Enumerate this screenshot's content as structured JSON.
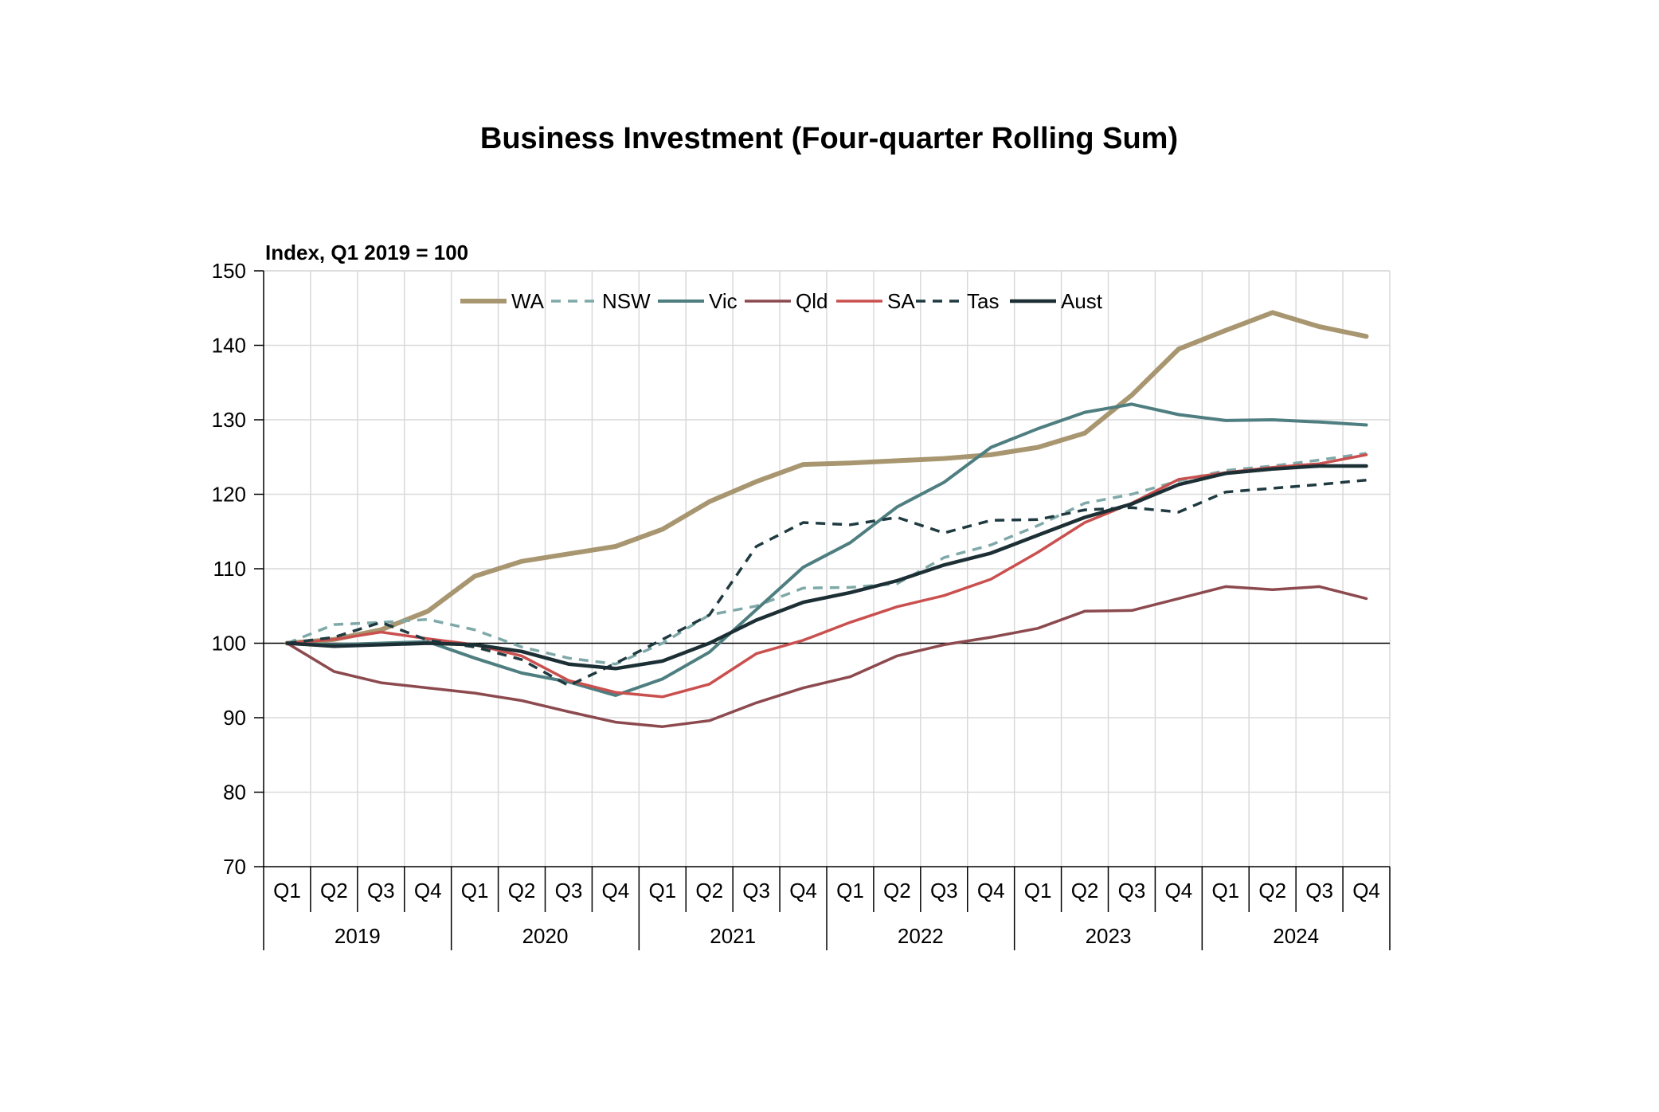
{
  "chart_data": {
    "type": "line",
    "title": "Business Investment (Four-quarter Rolling Sum)",
    "unit_label": "Index, Q1 2019 = 100",
    "ylim": [
      70,
      150
    ],
    "yticks": [
      "70",
      "80",
      "90",
      "100",
      "110",
      "120",
      "130",
      "140",
      "150"
    ],
    "grid": true,
    "legend_position": "top",
    "quarters": [
      "Q1",
      "Q2",
      "Q3",
      "Q4",
      "Q1",
      "Q2",
      "Q3",
      "Q4",
      "Q1",
      "Q2",
      "Q3",
      "Q4",
      "Q1",
      "Q2",
      "Q3",
      "Q4",
      "Q1",
      "Q2",
      "Q3",
      "Q4",
      "Q1",
      "Q2",
      "Q3",
      "Q4"
    ],
    "years": [
      "2019",
      "2020",
      "2021",
      "2022",
      "2023",
      "2024"
    ],
    "series": [
      {
        "name": "WA",
        "color": "#a89670",
        "dash": "solid",
        "width": 6,
        "values": [
          100,
          100.5,
          101.8,
          104.3,
          109,
          111,
          112,
          113,
          115.3,
          119,
          121.7,
          124,
          124.2,
          124.5,
          124.8,
          125.3,
          126.3,
          128.2,
          133.3,
          139.5,
          142,
          144.4,
          142.5,
          141.2
        ]
      },
      {
        "name": "NSW",
        "color": "#7fa8a8",
        "dash": "dash",
        "width": 3.5,
        "values": [
          100,
          102.5,
          102.8,
          103.2,
          101.8,
          99.5,
          98,
          97.2,
          100,
          103.8,
          105,
          107.4,
          107.5,
          108,
          111.5,
          113.2,
          115.8,
          118.8,
          120,
          121.8,
          123.2,
          123.8,
          124.6,
          125.5
        ]
      },
      {
        "name": "Vic",
        "color": "#4e7e80",
        "dash": "solid",
        "width": 4,
        "values": [
          100,
          99.8,
          100,
          100.2,
          98,
          96,
          94.8,
          93,
          95.2,
          98.8,
          104.5,
          110.2,
          113.5,
          118.3,
          121.6,
          126.3,
          128.8,
          131,
          132.1,
          130.7,
          129.9,
          130,
          129.7,
          129.3
        ]
      },
      {
        "name": "Qld",
        "color": "#8c4a4f",
        "dash": "solid",
        "width": 3.5,
        "values": [
          100,
          96.2,
          94.7,
          94,
          93.3,
          92.3,
          90.8,
          89.4,
          88.8,
          89.6,
          92,
          94,
          95.5,
          98.3,
          99.8,
          100.8,
          102,
          104.3,
          104.4,
          106,
          107.6,
          107.2,
          107.6,
          106
        ]
      },
      {
        "name": "SA",
        "color": "#c9504e",
        "dash": "solid",
        "width": 3.5,
        "values": [
          100,
          100.5,
          101.5,
          100.6,
          99.8,
          98.3,
          95,
          93.4,
          92.8,
          94.5,
          98.6,
          100.4,
          102.8,
          104.9,
          106.4,
          108.6,
          112.2,
          116.2,
          118.8,
          122,
          122.9,
          123.6,
          124.1,
          125.3
        ]
      },
      {
        "name": "Tas",
        "color": "#1f3a40",
        "dash": "dash",
        "width": 3.5,
        "values": [
          100,
          100.8,
          102.8,
          100.4,
          99.5,
          97.8,
          94.3,
          97.3,
          100.5,
          103.8,
          113,
          116.2,
          115.9,
          116.9,
          114.8,
          116.5,
          116.6,
          117.9,
          118.2,
          117.6,
          120.3,
          120.8,
          121.3,
          121.9
        ]
      },
      {
        "name": "Aust",
        "color": "#1c2f35",
        "dash": "solid",
        "width": 4.5,
        "values": [
          100,
          99.6,
          99.8,
          100,
          99.8,
          98.9,
          97.2,
          96.6,
          97.6,
          100,
          103.1,
          105.5,
          106.8,
          108.4,
          110.5,
          112.1,
          114.5,
          116.9,
          118.7,
          121.3,
          122.8,
          123.4,
          123.8,
          123.8
        ]
      }
    ]
  }
}
